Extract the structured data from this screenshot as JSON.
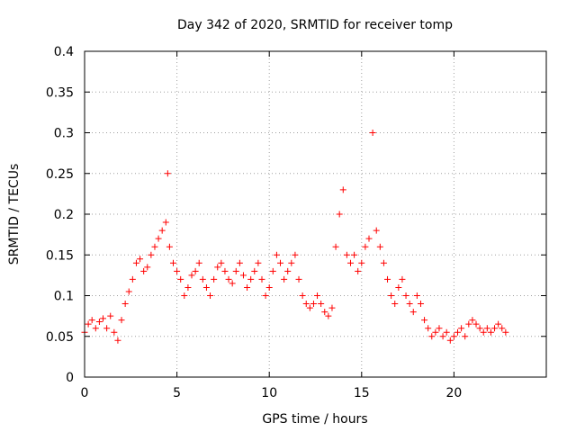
{
  "chart_data": {
    "type": "scatter",
    "title": "Day 342 of 2020, SRMTID for receiver tomp",
    "xlabel": "GPS time / hours",
    "ylabel": "SRMTID / TECUs",
    "xlim": [
      0,
      25
    ],
    "ylim": [
      0,
      0.4
    ],
    "xticks": [
      0,
      5,
      10,
      15,
      20
    ],
    "xtick_labels": [
      "0",
      "5",
      "10",
      "15",
      "20"
    ],
    "yticks": [
      0,
      0.05,
      0.1,
      0.15,
      0.2,
      0.25,
      0.3,
      0.35,
      0.4
    ],
    "ytick_labels": [
      "0",
      "0.05",
      "0.1",
      "0.15",
      "0.2",
      "0.25",
      "0.3",
      "0.35",
      "0.4"
    ],
    "grid": true,
    "marker": "plus",
    "color": "#ff0000",
    "series": [
      {
        "name": "SRMTID",
        "x": [
          0.0,
          0.2,
          0.4,
          0.6,
          0.8,
          1.0,
          1.2,
          1.4,
          1.6,
          1.8,
          2.0,
          2.2,
          2.4,
          2.6,
          2.8,
          3.0,
          3.2,
          3.4,
          3.6,
          3.8,
          4.0,
          4.2,
          4.4,
          4.5,
          4.6,
          4.8,
          5.0,
          5.2,
          5.4,
          5.6,
          5.8,
          6.0,
          6.2,
          6.4,
          6.6,
          6.8,
          7.0,
          7.2,
          7.4,
          7.6,
          7.8,
          8.0,
          8.2,
          8.4,
          8.6,
          8.8,
          9.0,
          9.2,
          9.4,
          9.6,
          9.8,
          10.0,
          10.2,
          10.4,
          10.6,
          10.8,
          11.0,
          11.2,
          11.4,
          11.6,
          11.8,
          12.0,
          12.2,
          12.4,
          12.6,
          12.8,
          13.0,
          13.2,
          13.4,
          13.6,
          13.8,
          14.0,
          14.2,
          14.4,
          14.6,
          14.8,
          15.0,
          15.2,
          15.4,
          15.6,
          15.8,
          16.0,
          16.2,
          16.4,
          16.6,
          16.8,
          17.0,
          17.2,
          17.4,
          17.6,
          17.8,
          18.0,
          18.2,
          18.4,
          18.6,
          18.8,
          19.0,
          19.2,
          19.4,
          19.6,
          19.8,
          20.0,
          20.2,
          20.4,
          20.6,
          20.8,
          21.0,
          21.2,
          21.4,
          21.6,
          21.8,
          22.0,
          22.2,
          22.4,
          22.6,
          22.8
        ],
        "y": [
          0.055,
          0.065,
          0.07,
          0.06,
          0.068,
          0.072,
          0.06,
          0.075,
          0.055,
          0.045,
          0.07,
          0.09,
          0.105,
          0.12,
          0.14,
          0.145,
          0.13,
          0.135,
          0.15,
          0.16,
          0.17,
          0.18,
          0.19,
          0.25,
          0.16,
          0.14,
          0.13,
          0.12,
          0.1,
          0.11,
          0.125,
          0.13,
          0.14,
          0.12,
          0.11,
          0.1,
          0.12,
          0.135,
          0.14,
          0.13,
          0.12,
          0.115,
          0.13,
          0.14,
          0.125,
          0.11,
          0.12,
          0.13,
          0.14,
          0.12,
          0.1,
          0.11,
          0.13,
          0.15,
          0.14,
          0.12,
          0.13,
          0.14,
          0.15,
          0.12,
          0.1,
          0.09,
          0.085,
          0.09,
          0.1,
          0.09,
          0.08,
          0.075,
          0.085,
          0.16,
          0.2,
          0.23,
          0.15,
          0.14,
          0.15,
          0.13,
          0.14,
          0.16,
          0.17,
          0.3,
          0.18,
          0.16,
          0.14,
          0.12,
          0.1,
          0.09,
          0.11,
          0.12,
          0.1,
          0.09,
          0.08,
          0.1,
          0.09,
          0.07,
          0.06,
          0.05,
          0.055,
          0.06,
          0.05,
          0.055,
          0.045,
          0.05,
          0.055,
          0.06,
          0.05,
          0.065,
          0.07,
          0.065,
          0.06,
          0.055,
          0.06,
          0.055,
          0.06,
          0.065,
          0.06,
          0.055
        ]
      }
    ]
  }
}
